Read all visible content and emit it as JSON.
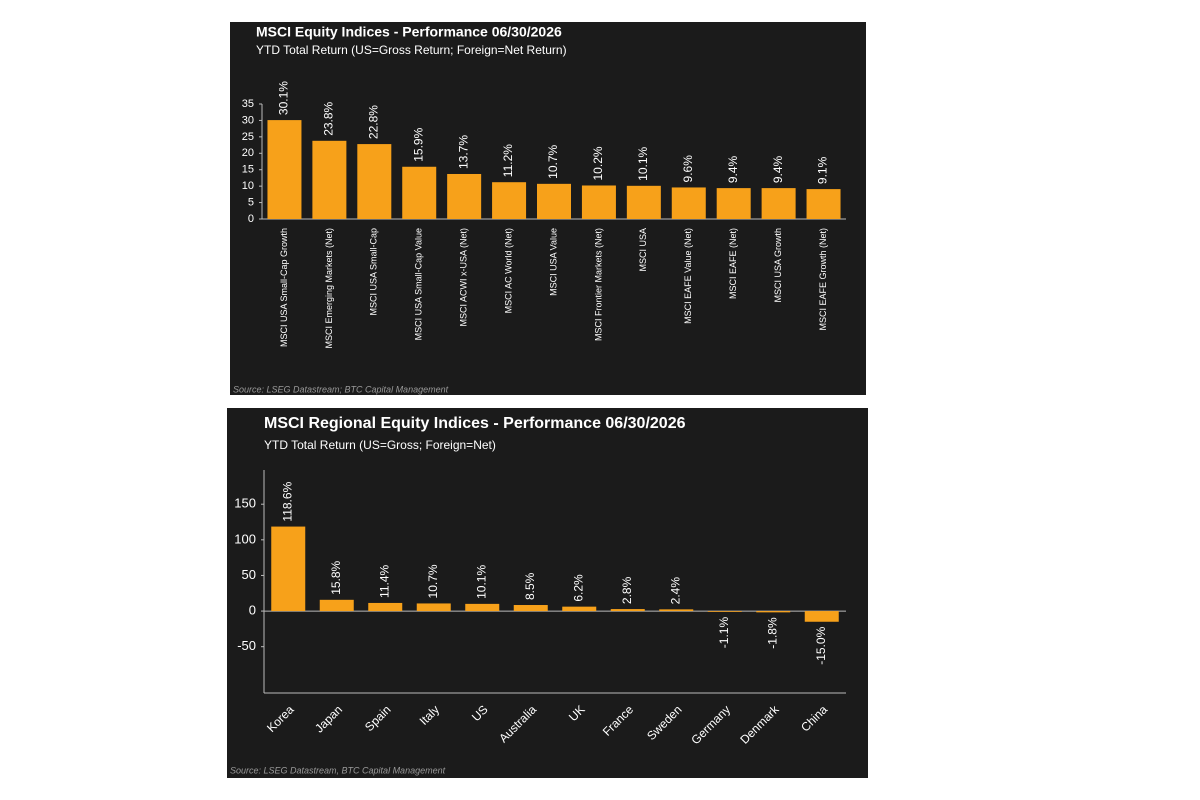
{
  "chart_data": [
    {
      "type": "bar",
      "title": "MSCI Equity Indices - Performance 06/30/2026",
      "subtitle": "YTD Total Return (US=Gross Return; Foreign=Net Return)",
      "categories": [
        "MSCI USA Small-Cap Growth",
        "MSCI Emerging Markets (Net)",
        "MSCI USA Small-Cap",
        "MSCI USA Small-Cap Value",
        "MSCI ACWI x-USA (Net)",
        "MSCI AC World (Net)",
        "MSCI USA Value",
        "MSCI Frontier Markets (Net)",
        "MSCI USA",
        "MSCI EAFE Value (Net)",
        "MSCI EAFE (Net)",
        "MSCI USA Growth",
        "MSCI EAFE Growth (Net)"
      ],
      "values": [
        30.1,
        23.8,
        22.8,
        15.9,
        13.7,
        11.2,
        10.7,
        10.2,
        10.1,
        9.6,
        9.4,
        9.4,
        9.1
      ],
      "value_labels": [
        "30.1%",
        "23.8%",
        "22.8%",
        "15.9%",
        "13.7%",
        "11.2%",
        "10.7%",
        "10.2%",
        "10.1%",
        "9.6%",
        "9.4%",
        "9.4%",
        "9.1%"
      ],
      "color": "#f7a11a",
      "ylim": [
        0,
        35
      ],
      "yticks": [
        0,
        5,
        10,
        15,
        20,
        25,
        30,
        35
      ],
      "source": "Source: LSEG Datastream; BTC Capital Management"
    },
    {
      "type": "bar",
      "title": "MSCI Regional Equity Indices - Performance 06/30/2026",
      "subtitle": "YTD Total Return (US=Gross; Foreign=Net)",
      "categories": [
        "Korea",
        "Japan",
        "Spain",
        "Italy",
        "US",
        "Australia",
        "UK",
        "France",
        "Sweden",
        "Germany",
        "Denmark",
        "China"
      ],
      "values": [
        118.6,
        15.8,
        11.4,
        10.7,
        10.1,
        8.5,
        6.2,
        2.8,
        2.4,
        -1.1,
        -1.8,
        -15.0
      ],
      "value_labels": [
        "118.6%",
        "15.8%",
        "11.4%",
        "10.7%",
        "10.1%",
        "8.5%",
        "6.2%",
        "2.8%",
        "2.4%",
        "-1.1%",
        "-1.8%",
        "-15.0%"
      ],
      "color": "#f7a11a",
      "ylim": [
        -115,
        198
      ],
      "yticks": [
        -50,
        0,
        50,
        100,
        150
      ],
      "source": "Source: LSEG Datastream, BTC Capital Management"
    }
  ]
}
